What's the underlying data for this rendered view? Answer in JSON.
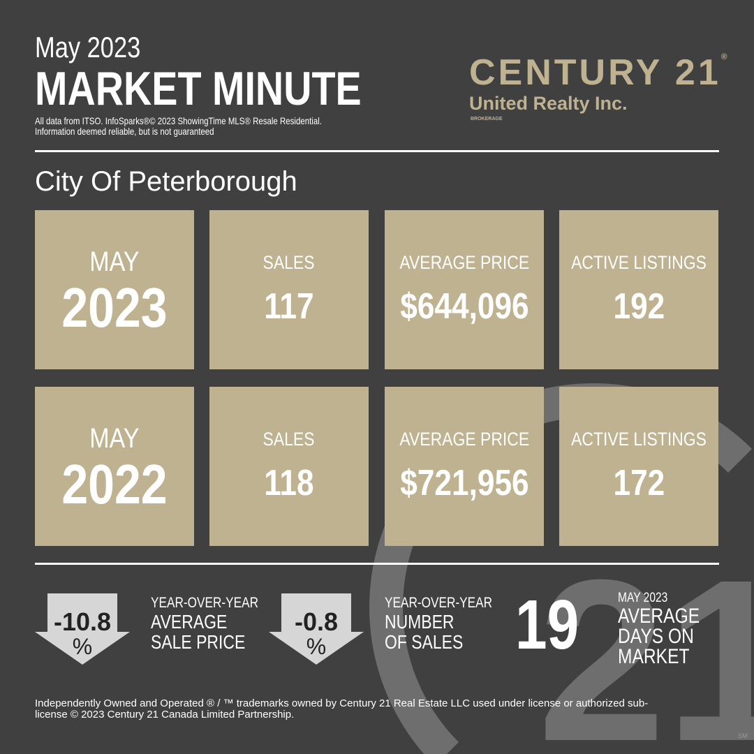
{
  "header": {
    "date": "May 2023",
    "title": "MARKET MINUTE",
    "source": [
      "All data from ITSO. InfoSparks®© 2023 ShowingTime MLS® Resale  Residential.",
      "Information deemed reliable, but is not guaranteed"
    ]
  },
  "logo": {
    "brand": "CENTURY 21",
    "mark": "®",
    "office": "United Realty Inc.",
    "tag": "BROKERAGE",
    "watermark": "21",
    "service_mark": "SM"
  },
  "location": "City Of Peterborough",
  "rows": [
    {
      "month": "MAY",
      "year": "2023",
      "stats": [
        {
          "label": "SALES",
          "value": "117"
        },
        {
          "label": "AVERAGE PRICE",
          "value": "$644,096"
        },
        {
          "label": "ACTIVE LISTINGS",
          "value": "192"
        }
      ]
    },
    {
      "month": "MAY",
      "year": "2022",
      "stats": [
        {
          "label": "SALES",
          "value": "118"
        },
        {
          "label": "AVERAGE PRICE",
          "value": "$721,956"
        },
        {
          "label": "ACTIVE LISTINGS",
          "value": "172"
        }
      ]
    }
  ],
  "summary": [
    {
      "value": "-10.8",
      "unit": "%",
      "lines": [
        "YEAR-OVER-YEAR",
        "AVERAGE",
        "SALE PRICE"
      ]
    },
    {
      "value": "-0.8",
      "unit": "%",
      "lines": [
        "YEAR-OVER-YEAR",
        "NUMBER",
        "OF SALES"
      ]
    }
  ],
  "days": {
    "value": "19",
    "lines": [
      "MAY 2023",
      "AVERAGE",
      "DAYS ON",
      "MARKET"
    ]
  },
  "footer": [
    "Independently Owned and Operated ® / ™ trademarks owned by Century 21 Real Estate LLC used under license or authorized sub-",
    "license © 2023 Century 21 Canada Limited Partnership."
  ]
}
